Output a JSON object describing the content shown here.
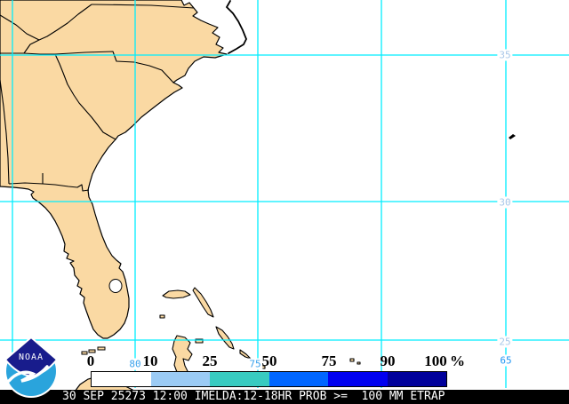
{
  "title": "NOAA ETRAP tropical rainfall probability map",
  "map": {
    "ocean_color": "#FFFFFF",
    "land_color": "#FAD9A3",
    "grid_color": "#00EEFF",
    "latitude_labels": [
      {
        "text": "35"
      },
      {
        "text": "30"
      },
      {
        "text": "25"
      }
    ],
    "longitude_labels": [
      {
        "text": "80"
      },
      {
        "text": "75"
      },
      {
        "text": "65"
      }
    ],
    "lat_label_color": "#A9C7E8",
    "lon_label_color": "#3BA3EC"
  },
  "colorbar": {
    "labels": [
      "0",
      "10",
      "25",
      "50",
      "75",
      "90",
      "100"
    ],
    "unit": "%",
    "segments": [
      "#FFFFFF",
      "#9BCBF5",
      "#38CBC0",
      "#0066FF",
      "#0000F0",
      "#00009B"
    ]
  },
  "caption": {
    "text": "30 SEP 25273 12:00 IMELDA:12-18HR PROB >=  100 MM ETRAP"
  },
  "logo": {
    "text": "NOAA"
  }
}
